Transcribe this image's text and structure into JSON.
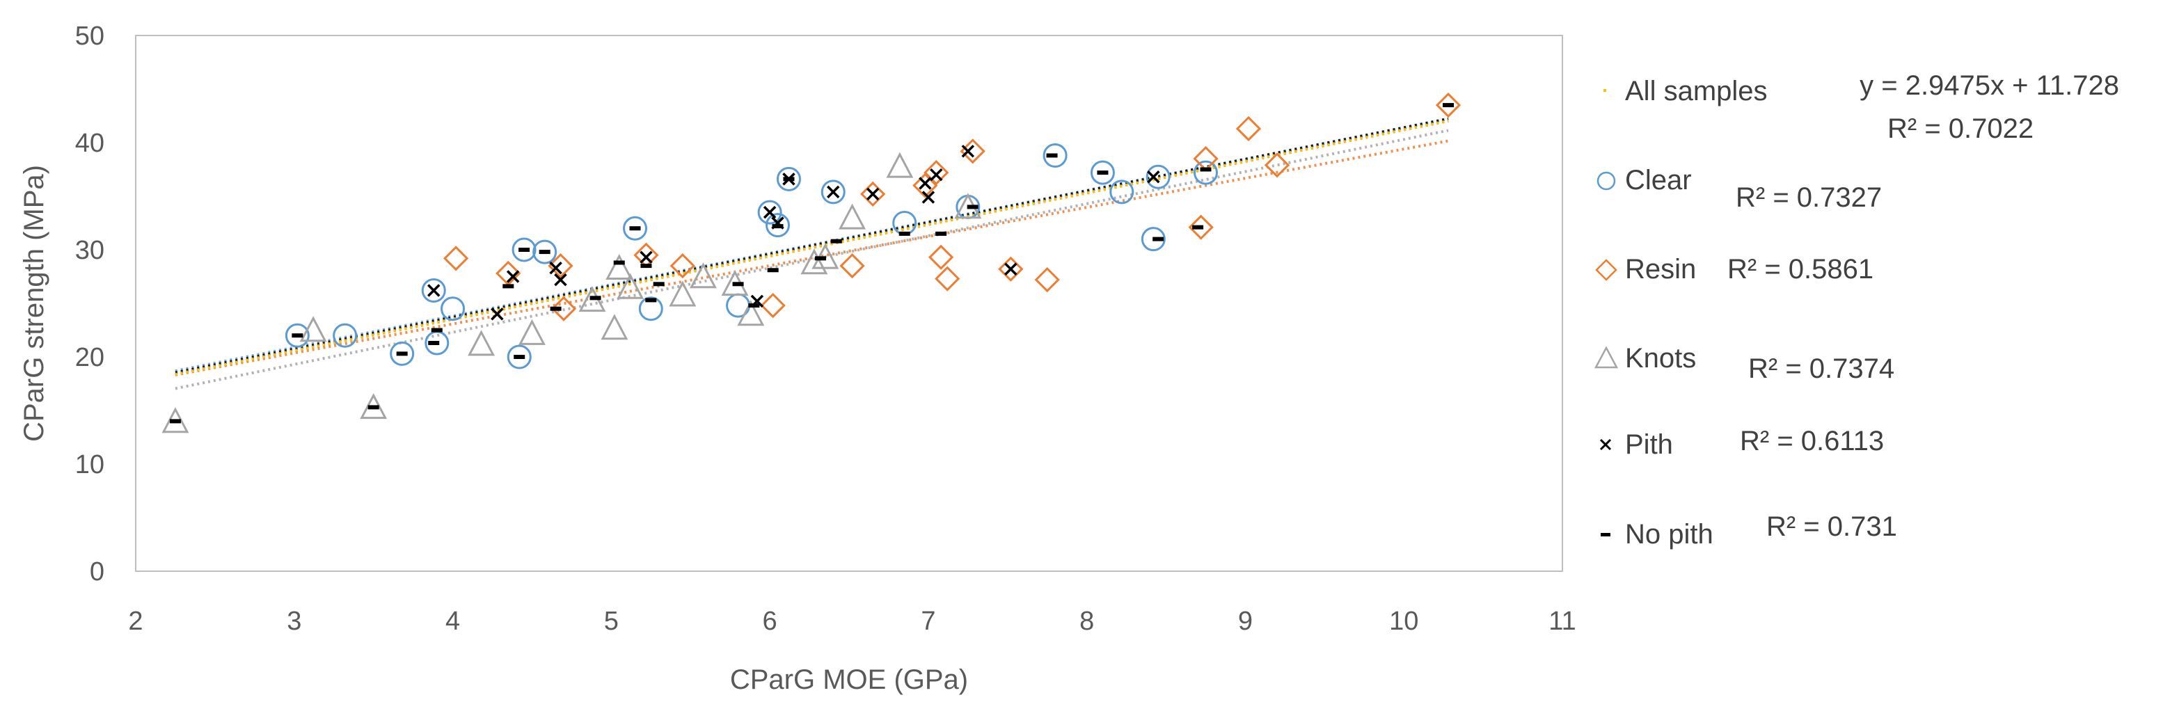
{
  "chart_data": {
    "type": "scatter",
    "title": "",
    "xlabel": "CParG MOE (GPa)",
    "ylabel": "CParG strength (MPa)",
    "xlim": [
      2,
      11
    ],
    "ylim": [
      0,
      50
    ],
    "x_ticks": [
      "2",
      "3",
      "4",
      "5",
      "6",
      "7",
      "8",
      "9",
      "10",
      "11"
    ],
    "y_ticks": [
      "0",
      "10",
      "20",
      "30",
      "40",
      "50"
    ],
    "grid": false,
    "legend_position": "right",
    "overall_trendline": {
      "label": "All samples",
      "equation": "y = 2.9475x + 11.728",
      "r2": "R² = 0.7022",
      "slope": 2.9475,
      "intercept": 11.728,
      "color": "#ffc000"
    },
    "series": [
      {
        "name": "Clear",
        "marker": "circle",
        "color": "#5b9bd5",
        "r2": "R² = 0.7327",
        "trend": {
          "slope": 2.93,
          "intercept": 12.1
        },
        "x": [
          3.02,
          3.32,
          3.68,
          3.9,
          3.88,
          4.0,
          4.42,
          4.45,
          4.58,
          5.15,
          5.25,
          5.8,
          6.0,
          6.05,
          6.12,
          6.4,
          6.85,
          7.25,
          7.8,
          8.1,
          8.22,
          8.42,
          8.45,
          8.75
        ],
        "y": [
          22,
          22,
          20.3,
          21.3,
          26.2,
          24.5,
          20,
          30,
          29.8,
          32,
          24.5,
          24.8,
          33.5,
          32.3,
          36.6,
          35.4,
          32.5,
          34,
          38.8,
          37.2,
          35.4,
          31,
          36.8,
          37.2
        ]
      },
      {
        "name": "Resin",
        "marker": "diamond",
        "color": "#ed7d31",
        "r2": "R² = 0.5861",
        "trend": {
          "slope": 2.72,
          "intercept": 12.2
        },
        "x": [
          4.02,
          4.35,
          4.68,
          4.7,
          5.22,
          5.45,
          6.02,
          6.52,
          6.65,
          6.98,
          7.05,
          7.08,
          7.12,
          7.28,
          7.52,
          7.75,
          8.72,
          8.75,
          9.02,
          9.2,
          10.28
        ],
        "y": [
          29.2,
          27.8,
          28.5,
          24.5,
          29.5,
          28.5,
          24.8,
          28.5,
          35.2,
          36,
          37.2,
          29.3,
          27.3,
          39.2,
          28.2,
          27.2,
          32.1,
          38.5,
          41.3,
          37.9,
          43.5
        ]
      },
      {
        "name": "Knots",
        "marker": "triangle",
        "color": "#a5a5a5",
        "r2": "R² = 0.7374",
        "trend": {
          "slope": 3.0,
          "intercept": 10.3
        },
        "x": [
          2.25,
          3.12,
          3.5,
          4.18,
          4.5,
          4.88,
          5.02,
          5.05,
          5.12,
          5.45,
          5.58,
          5.78,
          5.88,
          6.28,
          6.35,
          6.52,
          6.82,
          7.25
        ],
        "y": [
          14,
          22.5,
          15.3,
          21.2,
          22.2,
          25.3,
          22.7,
          28.3,
          26.5,
          25.8,
          27.5,
          26.8,
          24,
          28.8,
          29.3,
          33,
          37.8,
          34
        ]
      },
      {
        "name": "Pith",
        "marker": "x",
        "color": "#000000",
        "r2": "R² = 0.6113",
        "trend": {
          "slope": 2.95,
          "intercept": 11.9
        },
        "x": [
          3.88,
          4.28,
          4.38,
          4.65,
          4.68,
          5.22,
          5.92,
          6.0,
          6.05,
          6.12,
          6.4,
          6.65,
          6.98,
          7.0,
          7.05,
          7.25,
          7.52,
          8.42
        ],
        "y": [
          26.2,
          24,
          27.5,
          28.3,
          27.2,
          29.3,
          25.2,
          33.5,
          32.5,
          36.6,
          35.4,
          35.2,
          36.2,
          34.9,
          37,
          39.2,
          28.2,
          36.8
        ]
      },
      {
        "name": "No pith",
        "marker": "dash",
        "color": "#000000",
        "r2": "R² = 0.731",
        "trend": {
          "slope": 2.9475,
          "intercept": 11.728
        },
        "x": [
          2.25,
          3.02,
          3.5,
          3.68,
          3.88,
          3.9,
          4.35,
          4.42,
          4.45,
          4.58,
          4.65,
          4.9,
          5.05,
          5.15,
          5.22,
          5.25,
          5.3,
          5.8,
          5.9,
          6.02,
          6.05,
          6.12,
          6.32,
          6.42,
          6.85,
          7.08,
          7.28,
          7.78,
          8.1,
          8.45,
          8.7,
          8.75,
          10.28
        ],
        "y": [
          14,
          22,
          15.3,
          20.3,
          21.3,
          22.5,
          26.6,
          20,
          30,
          29.8,
          24.5,
          25.5,
          28.8,
          32,
          28.5,
          25.3,
          26.8,
          26.8,
          24.8,
          28.1,
          32.2,
          36.6,
          29.2,
          30.8,
          31.5,
          31.5,
          34,
          38.8,
          37.2,
          31,
          32.1,
          37.5,
          43.5
        ]
      }
    ]
  }
}
